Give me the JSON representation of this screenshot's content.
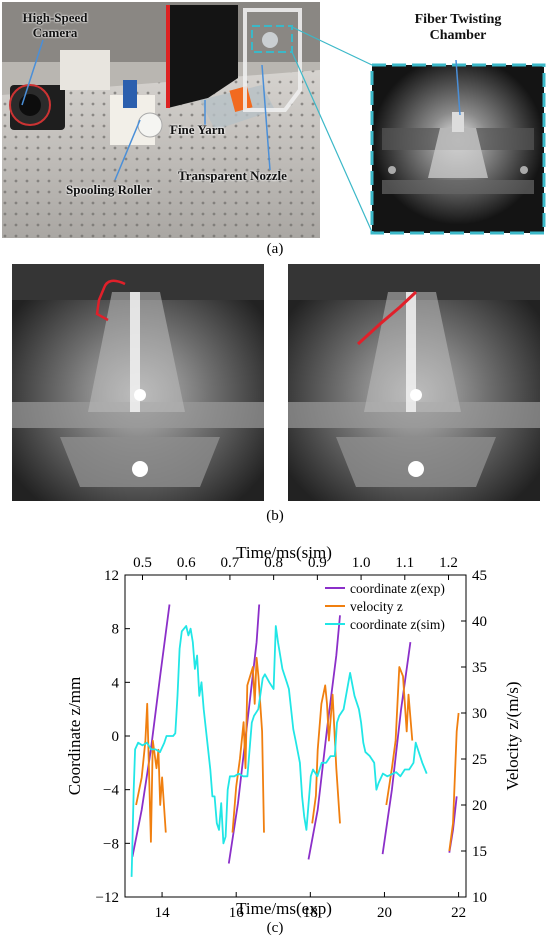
{
  "panel_a": {
    "labels": {
      "camera": "High-Speed\nCamera",
      "fine_yarn": "Fine Yarn",
      "roller": "Spooling Roller",
      "nozzle": "Transparent Nozzle",
      "chamber": "Fiber Twisting\nChamber"
    },
    "caption": "(a)"
  },
  "panel_b": {
    "caption": "(b)"
  },
  "panel_c": {
    "caption": "(c)"
  },
  "colors": {
    "exp": "#8b2fc9",
    "vel": "#f07f0f",
    "sim": "#21e6e6",
    "track": "#e0202a"
  },
  "chart_data": {
    "type": "line",
    "xlabel_bottom": "Time/ms(exp)",
    "xlabel_top": "Time/ms(sim)",
    "ylabel_left": "Coordinate z/mm",
    "ylabel_right": "Velocity z/(m/s)",
    "xlim_bottom": [
      13,
      22.2
    ],
    "xticks_bottom": [
      "14",
      "16",
      "18",
      "20",
      "22"
    ],
    "xlim_top": [
      0.46,
      1.24
    ],
    "xticks_top": [
      "0.5",
      "0.6",
      "0.7",
      "0.8",
      "0.9",
      "1.0",
      "1.1",
      "1.2"
    ],
    "ylim_left": [
      -12,
      12
    ],
    "yticks_left": [
      "-12",
      "-8",
      "-4",
      "0",
      "4",
      "8",
      "12"
    ],
    "ylim_right": [
      10,
      45
    ],
    "yticks_right": [
      "10",
      "15",
      "20",
      "25",
      "30",
      "35",
      "40",
      "45"
    ],
    "legend_position": "top-right",
    "series": [
      {
        "name": "coordinate z(exp)",
        "color_key": "exp",
        "axis": "left-bottom",
        "segments": [
          [
            [
              13.2,
              -9
            ],
            [
              13.45,
              -5.5
            ],
            [
              13.7,
              -1
            ],
            [
              13.95,
              4.5
            ],
            [
              14.2,
              9.8
            ]
          ],
          [
            [
              15.8,
              -9.5
            ],
            [
              16.05,
              -5
            ],
            [
              16.3,
              1
            ],
            [
              16.55,
              7
            ],
            [
              16.62,
              9.8
            ]
          ],
          [
            [
              17.95,
              -9.2
            ],
            [
              18.2,
              -5.5
            ],
            [
              18.45,
              0.5
            ],
            [
              18.7,
              6
            ],
            [
              18.8,
              9
            ]
          ],
          [
            [
              19.95,
              -8.8
            ],
            [
              20.2,
              -4
            ],
            [
              20.45,
              2
            ],
            [
              20.7,
              7
            ]
          ],
          [
            [
              21.75,
              -8.7
            ],
            [
              21.85,
              -7
            ],
            [
              21.95,
              -4.5
            ]
          ]
        ]
      },
      {
        "name": "velocity z",
        "color_key": "vel",
        "axis": "right-bottom",
        "segments": [
          [
            [
              13.3,
              20
            ],
            [
              13.45,
              23
            ],
            [
              13.55,
              27
            ],
            [
              13.6,
              31
            ],
            [
              13.7,
              16
            ],
            [
              13.75,
              27
            ],
            [
              13.85,
              24
            ],
            [
              13.9,
              26
            ],
            [
              13.95,
              20
            ],
            [
              14.0,
              23
            ],
            [
              14.1,
              17
            ]
          ],
          [
            [
              15.9,
              17
            ],
            [
              16.0,
              22
            ],
            [
              16.1,
              25
            ],
            [
              16.2,
              29
            ],
            [
              16.25,
              24
            ],
            [
              16.3,
              33
            ],
            [
              16.45,
              35
            ],
            [
              16.5,
              31
            ],
            [
              16.55,
              36
            ],
            [
              16.6,
              34
            ],
            [
              16.7,
              28
            ],
            [
              16.75,
              17
            ]
          ],
          [
            [
              18.05,
              18
            ],
            [
              18.15,
              21
            ],
            [
              18.2,
              26
            ],
            [
              18.3,
              31
            ],
            [
              18.4,
              33
            ],
            [
              18.45,
              31
            ],
            [
              18.5,
              27
            ],
            [
              18.6,
              32
            ],
            [
              18.7,
              24
            ],
            [
              18.8,
              18
            ]
          ],
          [
            [
              20.05,
              20
            ],
            [
              20.2,
              24
            ],
            [
              20.3,
              27
            ],
            [
              20.4,
              35
            ],
            [
              20.5,
              34
            ],
            [
              20.6,
              28
            ],
            [
              20.65,
              32
            ],
            [
              20.75,
              27
            ]
          ],
          [
            [
              21.75,
              15
            ],
            [
              21.85,
              18
            ],
            [
              21.95,
              28
            ],
            [
              22.0,
              30
            ]
          ]
        ]
      },
      {
        "name": "coordinate z(sim)",
        "color_key": "sim",
        "axis": "left-top",
        "points": [
          [
            0.475,
            -10.5
          ],
          [
            0.48,
            -4
          ],
          [
            0.483,
            -1
          ],
          [
            0.49,
            -0.5
          ],
          [
            0.5,
            -0.7
          ],
          [
            0.51,
            -0.5
          ],
          [
            0.52,
            -1
          ],
          [
            0.53,
            -1
          ],
          [
            0.54,
            -1.2
          ],
          [
            0.55,
            -0.5
          ],
          [
            0.555,
            0
          ],
          [
            0.57,
            0
          ],
          [
            0.575,
            0.2
          ],
          [
            0.58,
            3
          ],
          [
            0.585,
            6.5
          ],
          [
            0.59,
            7.8
          ],
          [
            0.6,
            8.2
          ],
          [
            0.605,
            7.5
          ],
          [
            0.61,
            8
          ],
          [
            0.615,
            7
          ],
          [
            0.62,
            5
          ],
          [
            0.625,
            6
          ],
          [
            0.63,
            3
          ],
          [
            0.635,
            4
          ],
          [
            0.64,
            2
          ],
          [
            0.645,
            0.5
          ],
          [
            0.65,
            -1
          ],
          [
            0.655,
            -2.5
          ],
          [
            0.66,
            -4.5
          ],
          [
            0.665,
            -4.5
          ],
          [
            0.67,
            -6.5
          ],
          [
            0.675,
            -7
          ],
          [
            0.68,
            -5
          ],
          [
            0.685,
            -8
          ],
          [
            0.69,
            -7.5
          ],
          [
            0.695,
            -4
          ],
          [
            0.7,
            -3
          ],
          [
            0.71,
            -3
          ],
          [
            0.72,
            -2.8
          ],
          [
            0.73,
            -3
          ],
          [
            0.74,
            -3
          ],
          [
            0.75,
            1
          ],
          [
            0.755,
            1.5
          ],
          [
            0.765,
            2
          ],
          [
            0.775,
            4.3
          ],
          [
            0.78,
            4.6
          ],
          [
            0.79,
            4
          ],
          [
            0.8,
            3.5
          ],
          [
            0.805,
            8.2
          ],
          [
            0.81,
            7
          ],
          [
            0.82,
            5
          ],
          [
            0.825,
            4.5
          ],
          [
            0.83,
            4
          ],
          [
            0.835,
            3.5
          ],
          [
            0.84,
            2
          ],
          [
            0.845,
            0.5
          ],
          [
            0.85,
            -0.3
          ],
          [
            0.86,
            -2
          ],
          [
            0.865,
            -4.5
          ],
          [
            0.87,
            -6
          ],
          [
            0.875,
            -7
          ],
          [
            0.885,
            -3
          ],
          [
            0.89,
            -2.5
          ],
          [
            0.9,
            -3
          ],
          [
            0.91,
            -2
          ],
          [
            0.92,
            -2
          ],
          [
            0.93,
            -1.5
          ],
          [
            0.94,
            -1.5
          ],
          [
            0.945,
            1
          ],
          [
            0.95,
            1.5
          ],
          [
            0.96,
            2
          ],
          [
            0.975,
            4.7
          ],
          [
            0.985,
            3
          ],
          [
            0.995,
            2
          ],
          [
            1.0,
            1
          ],
          [
            1.005,
            -0.5
          ],
          [
            1.01,
            -1.2
          ],
          [
            1.02,
            -1.5
          ],
          [
            1.03,
            -2
          ],
          [
            1.035,
            -4
          ],
          [
            1.04,
            -3.5
          ],
          [
            1.05,
            -2.8
          ],
          [
            1.06,
            -3
          ],
          [
            1.08,
            -2.7
          ],
          [
            1.09,
            -3
          ],
          [
            1.1,
            -2.5
          ],
          [
            1.11,
            -2.5
          ],
          [
            1.12,
            -2
          ],
          [
            1.125,
            -0.5
          ],
          [
            1.13,
            -1
          ],
          [
            1.14,
            -2
          ],
          [
            1.15,
            -2.8
          ]
        ]
      }
    ]
  }
}
